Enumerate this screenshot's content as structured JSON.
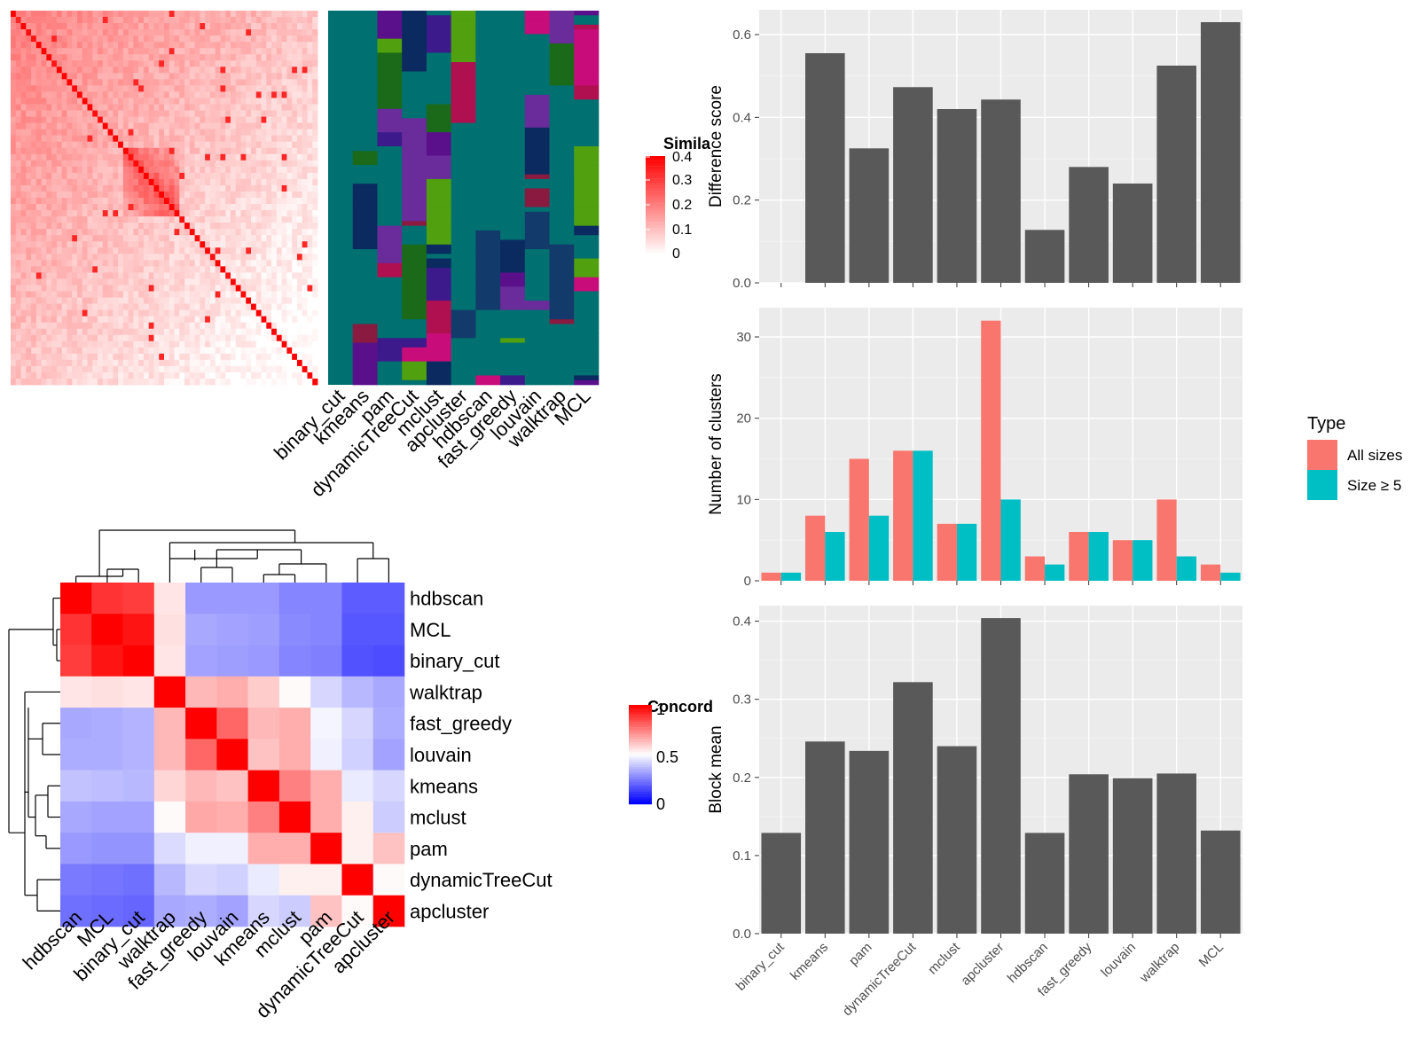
{
  "colors": {
    "panel_bg": "#ebebeb",
    "grid_major": "#ffffff",
    "bar_dark": "#595959",
    "all_sizes": "#f8766d",
    "size5": "#00bfc4",
    "heat_high": "#ff0000",
    "heat_mid": "#ffffff",
    "heat_low": "#0000ff",
    "teal": "#007070"
  },
  "similarity_heatmap": {
    "legend_title": "Simila",
    "legend_ticks": [
      "0.4",
      "0.3",
      "0.2",
      "0.1",
      "0"
    ]
  },
  "cluster_assignment": {
    "methods": [
      "binary_cut",
      "kmeans",
      "pam",
      "dynamicTreeCut",
      "mclust",
      "apcluster",
      "hdbscan",
      "fast_greedy",
      "louvain",
      "walktrap",
      "MCL"
    ]
  },
  "concordance": {
    "legend_title": "Concord",
    "legend_ticks": [
      "1",
      "0.5",
      "0"
    ],
    "methods": [
      "hdbscan",
      "MCL",
      "binary_cut",
      "walktrap",
      "fast_greedy",
      "louvain",
      "kmeans",
      "mclust",
      "pam",
      "dynamicTreeCut",
      "apcluster"
    ]
  },
  "legend": {
    "title": "Type",
    "items": [
      {
        "label": "All sizes",
        "color": "#f8766d"
      },
      {
        "label": "Size ≥ 5",
        "color": "#00bfc4"
      }
    ]
  },
  "chart_data": [
    {
      "type": "heatmap",
      "title": "",
      "rows": [
        "hdbscan",
        "MCL",
        "binary_cut",
        "walktrap",
        "fast_greedy",
        "louvain",
        "kmeans",
        "mclust",
        "pam",
        "dynamicTreeCut",
        "apcluster"
      ],
      "columns": [
        "hdbscan",
        "MCL",
        "binary_cut",
        "walktrap",
        "fast_greedy",
        "louvain",
        "kmeans",
        "mclust",
        "pam",
        "dynamicTreeCut",
        "apcluster"
      ],
      "values": [
        [
          1.0,
          0.9,
          0.88,
          0.55,
          0.3,
          0.3,
          0.3,
          0.26,
          0.26,
          0.18,
          0.18
        ],
        [
          0.9,
          1.0,
          0.96,
          0.56,
          0.33,
          0.32,
          0.31,
          0.27,
          0.26,
          0.17,
          0.17
        ],
        [
          0.88,
          0.96,
          1.0,
          0.55,
          0.32,
          0.31,
          0.3,
          0.26,
          0.25,
          0.16,
          0.15
        ],
        [
          0.55,
          0.56,
          0.55,
          1.0,
          0.64,
          0.66,
          0.6,
          0.51,
          0.42,
          0.36,
          0.33
        ],
        [
          0.33,
          0.34,
          0.35,
          0.64,
          1.0,
          0.8,
          0.64,
          0.66,
          0.48,
          0.42,
          0.34
        ],
        [
          0.34,
          0.34,
          0.35,
          0.64,
          0.8,
          1.0,
          0.62,
          0.66,
          0.47,
          0.41,
          0.32
        ],
        [
          0.38,
          0.37,
          0.36,
          0.58,
          0.64,
          0.62,
          1.0,
          0.75,
          0.66,
          0.46,
          0.42
        ],
        [
          0.33,
          0.32,
          0.32,
          0.51,
          0.67,
          0.66,
          0.75,
          1.0,
          0.66,
          0.53,
          0.4
        ],
        [
          0.3,
          0.29,
          0.29,
          0.43,
          0.47,
          0.47,
          0.66,
          0.66,
          1.0,
          0.53,
          0.62
        ],
        [
          0.24,
          0.23,
          0.22,
          0.36,
          0.42,
          0.41,
          0.46,
          0.53,
          0.53,
          1.0,
          0.51
        ],
        [
          0.22,
          0.21,
          0.2,
          0.33,
          0.34,
          0.32,
          0.42,
          0.4,
          0.62,
          0.51,
          1.0
        ]
      ],
      "color_range": [
        0,
        1
      ]
    },
    {
      "type": "bar",
      "categories": [
        "binary_cut",
        "kmeans",
        "pam",
        "dynamicTreeCut",
        "mclust",
        "apcluster",
        "hdbscan",
        "fast_greedy",
        "louvain",
        "walktrap",
        "MCL"
      ],
      "values": [
        0.0,
        0.555,
        0.325,
        0.473,
        0.42,
        0.443,
        0.128,
        0.28,
        0.24,
        0.525,
        0.63
      ],
      "ylabel": "Difference score",
      "ylim": [
        0,
        0.66
      ],
      "yticks": [
        "0.0",
        "0.2",
        "0.4",
        "0.6"
      ],
      "grid": true
    },
    {
      "type": "bar",
      "categories": [
        "binary_cut",
        "kmeans",
        "pam",
        "dynamicTreeCut",
        "mclust",
        "apcluster",
        "hdbscan",
        "fast_greedy",
        "louvain",
        "walktrap",
        "MCL"
      ],
      "series": [
        {
          "name": "All sizes",
          "values": [
            1,
            8,
            15,
            16,
            7,
            32,
            3,
            6,
            5,
            10,
            2
          ]
        },
        {
          "name": "Size ≥ 5",
          "values": [
            1,
            6,
            8,
            16,
            7,
            10,
            2,
            6,
            5,
            3,
            1
          ]
        }
      ],
      "ylabel": "Number of clusters",
      "ylim": [
        0,
        33.6
      ],
      "yticks": [
        "0",
        "10",
        "20",
        "30"
      ],
      "grid": true
    },
    {
      "type": "bar",
      "categories": [
        "binary_cut",
        "kmeans",
        "pam",
        "dynamicTreeCut",
        "mclust",
        "apcluster",
        "hdbscan",
        "fast_greedy",
        "louvain",
        "walktrap",
        "MCL"
      ],
      "values": [
        0.129,
        0.246,
        0.234,
        0.322,
        0.24,
        0.404,
        0.129,
        0.204,
        0.199,
        0.205,
        0.132
      ],
      "ylabel": "Block mean",
      "ylim": [
        0,
        0.42
      ],
      "yticks": [
        "0.0",
        "0.1",
        "0.2",
        "0.3",
        "0.4"
      ],
      "grid": true
    }
  ]
}
